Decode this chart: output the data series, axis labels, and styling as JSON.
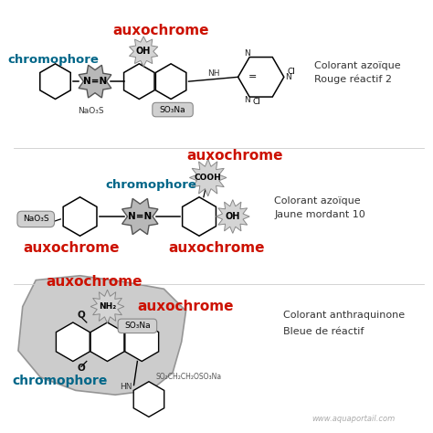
{
  "bg_color": "#ffffff",
  "watermark": "www.aquaportail.com",
  "aux_color": "#cc1100",
  "chrom_color": "#006688",
  "dark": "#222222",
  "gray_fill": "#c8c8c8",
  "gray_edge": "#777777",
  "section1": {
    "label_right1": "Colorant azoïque",
    "label_right2": "Rouge réactif 2"
  },
  "section2": {
    "label_right1": "Colorant azoïque",
    "label_right2": "Jaune mordant 10"
  },
  "section3": {
    "label_right1": "Colorant anthraquinone",
    "label_right2": "Bleue de réactif"
  }
}
